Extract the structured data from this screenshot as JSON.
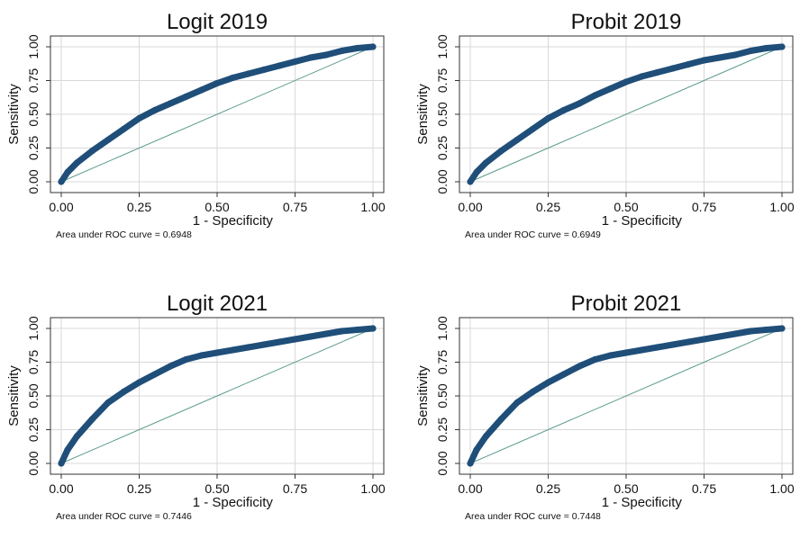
{
  "colors": {
    "roc": "#1f4e79",
    "reference": "#5a9a8c",
    "grid": "#d9d9d9"
  },
  "chart_data": [
    {
      "type": "line",
      "title": "Logit 2019",
      "xlabel": "1 - Specificity",
      "ylabel": "Sensitivity",
      "xlim": [
        0,
        1
      ],
      "ylim": [
        0,
        1
      ],
      "xticks": [
        "0.00",
        "0.25",
        "0.50",
        "0.75",
        "1.00"
      ],
      "yticks": [
        "0.00",
        "0.25",
        "0.50",
        "0.75",
        "1.00"
      ],
      "grid": true,
      "note": "Area under ROC curve = 0.6948",
      "series": [
        {
          "x": [
            0,
            0.02,
            0.05,
            0.1,
            0.15,
            0.2,
            0.25,
            0.3,
            0.35,
            0.4,
            0.45,
            0.5,
            0.55,
            0.6,
            0.65,
            0.7,
            0.75,
            0.8,
            0.85,
            0.9,
            0.95,
            1
          ],
          "y": [
            0,
            0.07,
            0.14,
            0.23,
            0.31,
            0.39,
            0.47,
            0.53,
            0.58,
            0.63,
            0.68,
            0.73,
            0.77,
            0.8,
            0.83,
            0.86,
            0.89,
            0.92,
            0.94,
            0.97,
            0.99,
            1
          ]
        },
        {
          "x": [
            0,
            1
          ],
          "y": [
            0,
            1
          ]
        }
      ]
    },
    {
      "type": "line",
      "title": "Probit 2019",
      "xlabel": "1 - Specificity",
      "ylabel": "Sensitivity",
      "xlim": [
        0,
        1
      ],
      "ylim": [
        0,
        1
      ],
      "xticks": [
        "0.00",
        "0.25",
        "0.50",
        "0.75",
        "1.00"
      ],
      "yticks": [
        "0.00",
        "0.25",
        "0.50",
        "0.75",
        "1.00"
      ],
      "grid": true,
      "note": "Area under ROC curve = 0.6949",
      "series": [
        {
          "x": [
            0,
            0.02,
            0.05,
            0.1,
            0.15,
            0.2,
            0.25,
            0.3,
            0.35,
            0.4,
            0.45,
            0.5,
            0.55,
            0.6,
            0.65,
            0.7,
            0.75,
            0.8,
            0.85,
            0.9,
            0.95,
            1
          ],
          "y": [
            0,
            0.07,
            0.14,
            0.23,
            0.31,
            0.39,
            0.47,
            0.53,
            0.58,
            0.64,
            0.69,
            0.74,
            0.78,
            0.81,
            0.84,
            0.87,
            0.9,
            0.92,
            0.94,
            0.97,
            0.99,
            1
          ]
        },
        {
          "x": [
            0,
            1
          ],
          "y": [
            0,
            1
          ]
        }
      ]
    },
    {
      "type": "line",
      "title": "Logit 2021",
      "xlabel": "1 - Specificity",
      "ylabel": "Sensitivity",
      "xlim": [
        0,
        1
      ],
      "ylim": [
        0,
        1
      ],
      "xticks": [
        "0.00",
        "0.25",
        "0.50",
        "0.75",
        "1.00"
      ],
      "yticks": [
        "0.00",
        "0.25",
        "0.50",
        "0.75",
        "1.00"
      ],
      "grid": true,
      "note": "Area under ROC curve = 0.7446",
      "series": [
        {
          "x": [
            0,
            0.02,
            0.05,
            0.1,
            0.15,
            0.2,
            0.25,
            0.3,
            0.35,
            0.4,
            0.45,
            0.5,
            0.55,
            0.6,
            0.65,
            0.7,
            0.75,
            0.8,
            0.85,
            0.9,
            0.95,
            1
          ],
          "y": [
            0,
            0.1,
            0.2,
            0.33,
            0.45,
            0.53,
            0.6,
            0.66,
            0.72,
            0.77,
            0.8,
            0.82,
            0.84,
            0.86,
            0.88,
            0.9,
            0.92,
            0.94,
            0.96,
            0.98,
            0.99,
            1
          ]
        },
        {
          "x": [
            0,
            1
          ],
          "y": [
            0,
            1
          ]
        }
      ]
    },
    {
      "type": "line",
      "title": "Probit 2021",
      "xlabel": "1 - Specificity",
      "ylabel": "Sensitivity",
      "xlim": [
        0,
        1
      ],
      "ylim": [
        0,
        1
      ],
      "xticks": [
        "0.00",
        "0.25",
        "0.50",
        "0.75",
        "1.00"
      ],
      "yticks": [
        "0.00",
        "0.25",
        "0.50",
        "0.75",
        "1.00"
      ],
      "grid": true,
      "note": "Area under ROC curve = 0.7448",
      "series": [
        {
          "x": [
            0,
            0.02,
            0.05,
            0.1,
            0.15,
            0.2,
            0.25,
            0.3,
            0.35,
            0.4,
            0.45,
            0.5,
            0.55,
            0.6,
            0.65,
            0.7,
            0.75,
            0.8,
            0.85,
            0.9,
            0.95,
            1
          ],
          "y": [
            0,
            0.1,
            0.2,
            0.33,
            0.45,
            0.53,
            0.6,
            0.66,
            0.72,
            0.77,
            0.8,
            0.82,
            0.84,
            0.86,
            0.88,
            0.9,
            0.92,
            0.94,
            0.96,
            0.98,
            0.99,
            1
          ]
        },
        {
          "x": [
            0,
            1
          ],
          "y": [
            0,
            1
          ]
        }
      ]
    }
  ]
}
